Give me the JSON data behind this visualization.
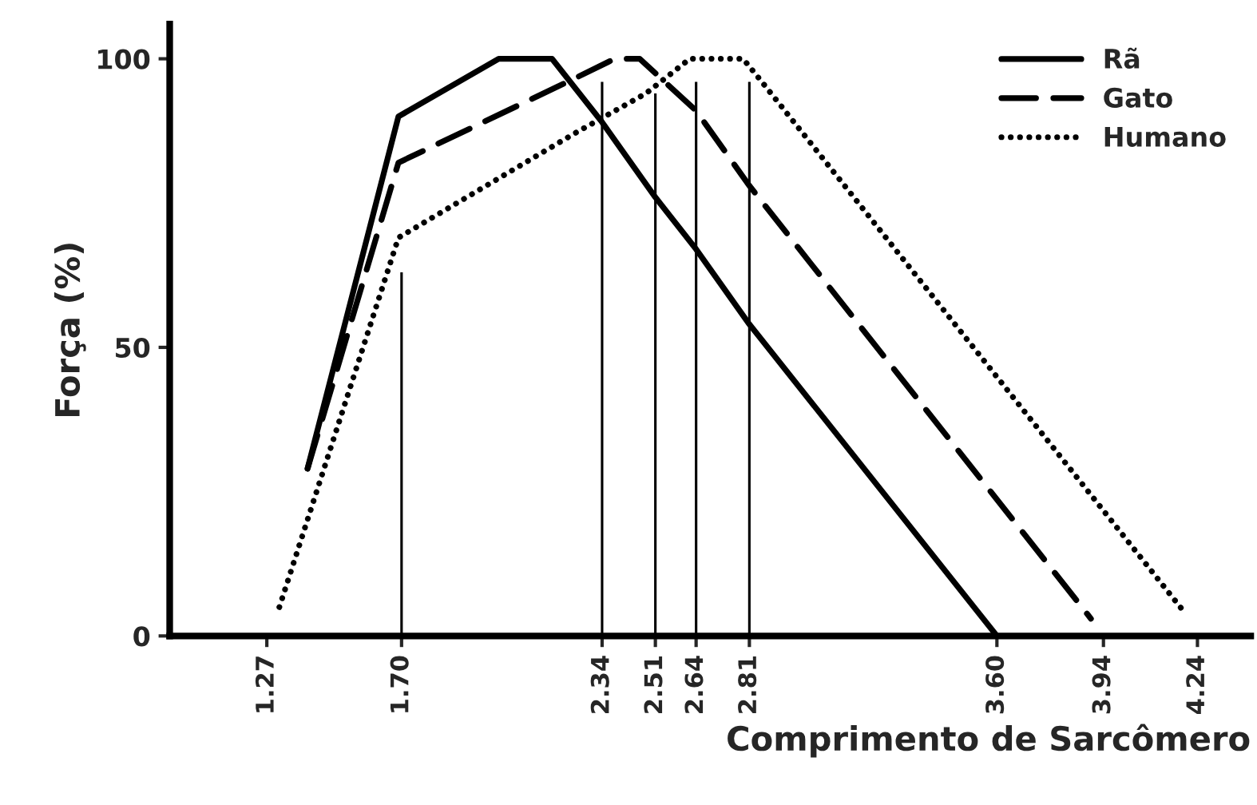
{
  "chart_data": {
    "type": "line",
    "xlabel": "Comprimento de Sarcômero",
    "ylabel": "Força (%)",
    "series": [
      {
        "name": "Rã",
        "color": "#000000",
        "line_style": "solid",
        "x": [
          1.4,
          1.69,
          2.01,
          2.18,
          2.34,
          2.51,
          2.64,
          2.81,
          3.6
        ],
        "values": [
          29,
          90,
          100,
          100,
          89,
          76,
          67,
          54,
          0
        ]
      },
      {
        "name": "Gato",
        "color": "#000000",
        "line_style": "dashed",
        "x": [
          1.4,
          1.69,
          2.23,
          2.38,
          2.46,
          2.64,
          2.81,
          3.9
        ],
        "values": [
          29,
          82,
          96,
          100,
          100,
          91,
          78,
          3
        ]
      },
      {
        "name": "Humano",
        "color": "#000000",
        "line_style": "dotted",
        "x": [
          1.31,
          1.69,
          2.25,
          2.48,
          2.62,
          2.79,
          2.85,
          4.2
        ],
        "values": [
          5,
          69,
          87,
          94,
          100,
          100,
          96,
          4
        ]
      },
      {
        "type": "bar",
        "color": "#000000",
        "x": [
          1.7,
          2.34,
          2.51,
          2.64,
          2.81
        ],
        "values": [
          63,
          96,
          94,
          96,
          96
        ]
      }
    ],
    "xlim": [
      0.96,
      4.41
    ],
    "ylim": [
      0,
      106
    ],
    "xticks": [
      1.27,
      {
        "value": 1.7,
        "label": "1.70"
      },
      2.34,
      2.51,
      2.64,
      2.81,
      {
        "value": 3.6,
        "label": "3.60"
      },
      3.94,
      4.24
    ],
    "yticks": [
      0,
      50,
      100
    ],
    "grid": false,
    "legend": "top right",
    "marker": "none"
  }
}
